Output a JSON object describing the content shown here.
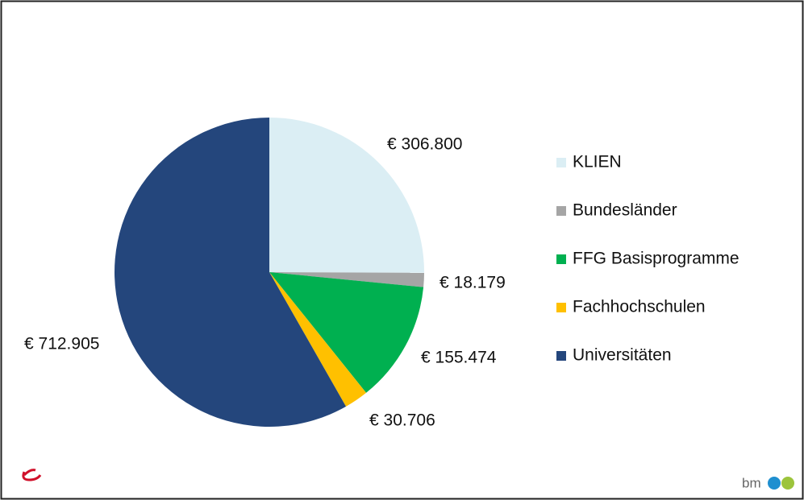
{
  "chart_data": {
    "type": "pie",
    "categories": [
      "KLIEN",
      "Bundesländer",
      "FFG Basisprogramme",
      "Fachhochschulen",
      "Universitäten"
    ],
    "values": [
      306800,
      18179,
      155474,
      30706,
      712905
    ],
    "value_labels": [
      "€ 306.800",
      "€ 18.179",
      "€ 155.474",
      "€ 30.706",
      "€ 712.905"
    ],
    "colors": [
      "#dbeef4",
      "#a5a5a5",
      "#00b050",
      "#ffc000",
      "#24467c"
    ],
    "legend": "right"
  },
  "footer": {
    "logo": "bm"
  }
}
